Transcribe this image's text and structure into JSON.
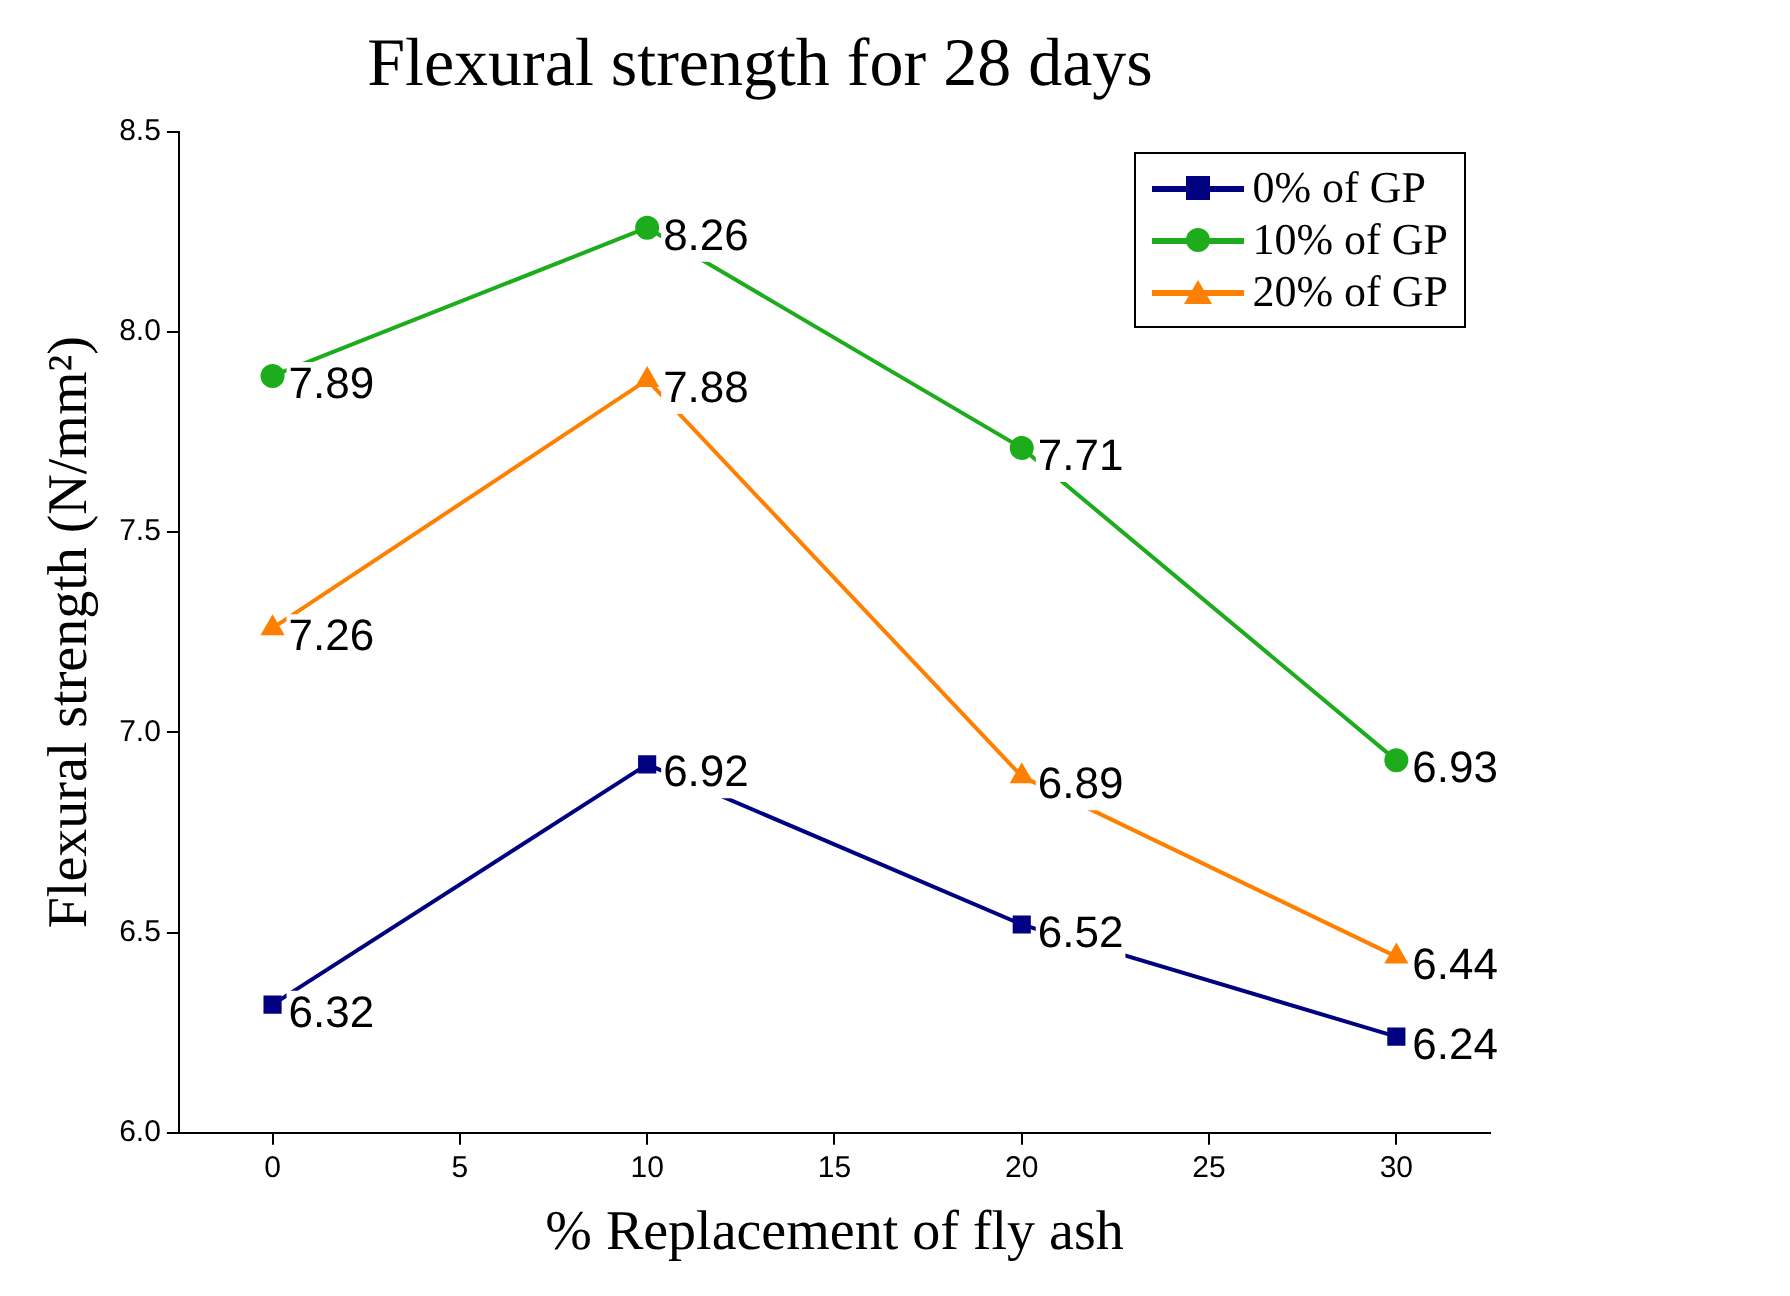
{
  "chart_data": {
    "type": "line",
    "title": "Flexural strength for 28 days",
    "xlabel": "% Replacement of fly ash",
    "ylabel": "Flexural strength (N/mm²)",
    "x": [
      0,
      10,
      20,
      30
    ],
    "xlim": [
      -2.5,
      32.5
    ],
    "xticks": [
      0,
      5,
      10,
      15,
      20,
      25,
      30
    ],
    "ylim": [
      6.0,
      8.5
    ],
    "yticks": [
      {
        "value": 6.0,
        "label": "6.0"
      },
      {
        "value": 6.5,
        "label": "6.5"
      },
      {
        "value": 7.0,
        "label": "7.0"
      },
      {
        "value": 7.5,
        "label": "7.5"
      },
      {
        "value": 8.0,
        "label": "8.0"
      },
      {
        "value": 8.5,
        "label": "8.5"
      }
    ],
    "series": [
      {
        "name": "0% of GP",
        "color": "#000080",
        "marker": "square",
        "values": [
          6.32,
          6.92,
          6.52,
          6.24
        ]
      },
      {
        "name": "10% of GP",
        "color": "#1cac1c",
        "marker": "circle",
        "values": [
          7.89,
          8.26,
          7.71,
          6.93
        ]
      },
      {
        "name": "20% of GP",
        "color": "#ff8000",
        "marker": "triangle",
        "values": [
          7.26,
          7.88,
          6.89,
          6.44
        ]
      }
    ],
    "data_labels": true,
    "grid": false,
    "legend": "top right",
    "line_style": "solid"
  }
}
